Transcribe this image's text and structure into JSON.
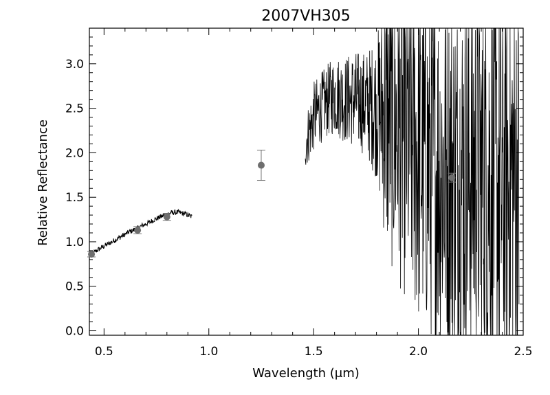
{
  "chart_data": {
    "type": "scatter",
    "title": "2007VH305",
    "xlabel": "Wavelength (μm)",
    "ylabel": "Relative Reflectance",
    "xlim": [
      0.43,
      2.5
    ],
    "ylim": [
      -0.05,
      3.4
    ],
    "xticks": [
      0.5,
      1.0,
      1.5,
      2.0,
      2.5
    ],
    "xtick_labels": [
      "0.5",
      "1.0",
      "1.5",
      "2.0",
      "2.5"
    ],
    "yticks": [
      0.0,
      0.5,
      1.0,
      1.5,
      2.0,
      2.5,
      3.0
    ],
    "ytick_labels": [
      "0.0",
      "0.5",
      "1.0",
      "1.5",
      "2.0",
      "2.5",
      "3.0"
    ],
    "grid": false,
    "legend": "none",
    "colors": {
      "spectrum": "#000000",
      "photometry": "#6e6e6e",
      "axes": "#000000"
    },
    "spectrum_visible": {
      "x": [
        0.44,
        0.47,
        0.5,
        0.53,
        0.56,
        0.59,
        0.62,
        0.65,
        0.68,
        0.71,
        0.74,
        0.77,
        0.8,
        0.83,
        0.86,
        0.89,
        0.92
      ],
      "y": [
        0.86,
        0.91,
        0.95,
        0.99,
        1.03,
        1.07,
        1.11,
        1.14,
        1.18,
        1.21,
        1.25,
        1.28,
        1.31,
        1.33,
        1.33,
        1.31,
        1.28
      ]
    },
    "spectrum_nir": {
      "x": [
        1.46,
        1.5,
        1.55,
        1.6,
        1.65,
        1.7,
        1.75,
        1.8,
        1.85,
        1.9,
        1.95,
        2.0,
        2.05,
        2.1,
        2.15,
        2.2,
        2.25,
        2.3,
        2.35,
        2.4,
        2.45,
        2.48
      ],
      "y": [
        2.1,
        2.4,
        2.55,
        2.65,
        2.6,
        2.6,
        2.55,
        2.5,
        2.4,
        2.3,
        2.2,
        2.0,
        1.9,
        1.8,
        1.75,
        1.7,
        1.8,
        1.75,
        1.7,
        1.6,
        1.7,
        1.6
      ],
      "noise": [
        0.3,
        0.4,
        0.4,
        0.45,
        0.5,
        0.55,
        0.6,
        0.8,
        1.6,
        1.8,
        1.9,
        2.0,
        2.0,
        2.1,
        2.1,
        2.2,
        2.2,
        2.3,
        2.4,
        2.4,
        2.5,
        2.5
      ]
    },
    "photometry": [
      {
        "x": 0.44,
        "y": 0.86,
        "err": 0.03
      },
      {
        "x": 0.66,
        "y": 1.13,
        "err": 0.04
      },
      {
        "x": 0.8,
        "y": 1.28,
        "err": 0.04
      },
      {
        "x": 1.25,
        "y": 1.86,
        "err": 0.17
      },
      {
        "x": 2.16,
        "y": 1.72,
        "err": 0.05
      }
    ]
  }
}
